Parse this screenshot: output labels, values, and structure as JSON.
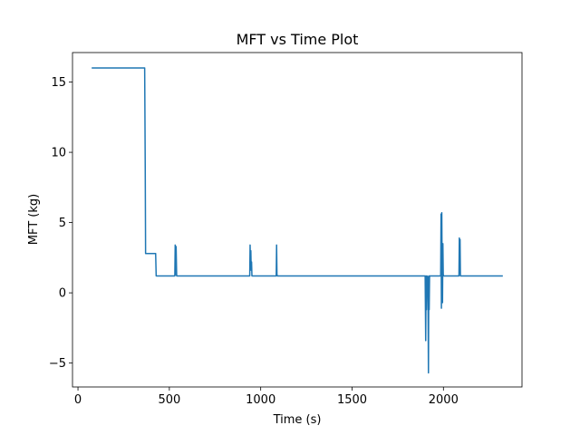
{
  "chart_data": {
    "type": "line",
    "title": "MFT vs Time Plot",
    "xlabel": "Time (s)",
    "ylabel": "MFT (kg)",
    "xlim": [
      -30,
      2430
    ],
    "ylim": [
      -6.7,
      17.1
    ],
    "xticks": [
      0,
      500,
      1000,
      1500,
      2000
    ],
    "yticks": [
      -5,
      0,
      5,
      10,
      15
    ],
    "xtick_labels": [
      "0",
      "500",
      "1000",
      "1500",
      "2000"
    ],
    "ytick_labels": [
      "−5",
      "0",
      "5",
      "10",
      "15"
    ],
    "grid": false,
    "series": [
      {
        "name": "MFT",
        "color": "#1f77b4",
        "x": [
          75,
          200,
          300,
          365,
          368,
          370,
          380,
          400,
          425,
          428,
          430,
          530,
          532,
          535,
          537,
          540,
          700,
          940,
          942,
          944,
          946,
          948,
          950,
          952,
          1000,
          1085,
          1087,
          1089,
          1091,
          1300,
          1500,
          1700,
          1750,
          1800,
          1850,
          1900,
          1903,
          1905,
          1907,
          1910,
          1915,
          1918,
          1920,
          1922,
          1924,
          1926,
          1930,
          1960,
          1985,
          1987,
          1989,
          1991,
          1993,
          1995,
          1997,
          1999,
          2001,
          2003,
          2005,
          2007,
          2040,
          2085,
          2087,
          2089,
          2091,
          2093,
          2100,
          2150,
          2200,
          2250,
          2300,
          2325
        ],
        "y": [
          16.0,
          16.0,
          16.0,
          16.0,
          9.0,
          2.8,
          2.8,
          2.8,
          2.8,
          1.2,
          1.2,
          1.2,
          3.4,
          1.3,
          3.3,
          1.2,
          1.2,
          1.2,
          3.4,
          1.9,
          3.0,
          1.6,
          2.2,
          1.2,
          1.2,
          1.2,
          3.4,
          1.3,
          1.2,
          1.2,
          1.2,
          1.2,
          1.2,
          1.2,
          1.2,
          1.2,
          -3.4,
          1.2,
          -1.2,
          1.2,
          1.1,
          -5.7,
          1.2,
          -1.2,
          1.2,
          1.2,
          1.2,
          1.2,
          1.2,
          5.6,
          -1.1,
          5.7,
          1.2,
          -0.7,
          3.5,
          1.3,
          1.2,
          1.2,
          1.2,
          1.2,
          1.2,
          1.2,
          3.9,
          1.4,
          3.8,
          1.2,
          1.2,
          1.2,
          1.2,
          1.2,
          1.2,
          1.2
        ]
      }
    ]
  }
}
